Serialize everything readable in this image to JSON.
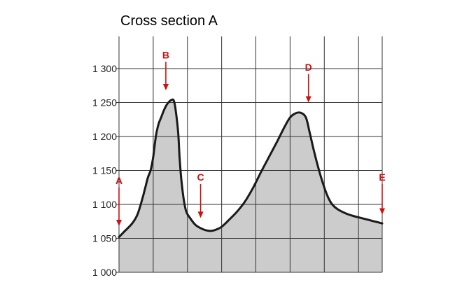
{
  "title": "Cross section A",
  "colors": {
    "profile_fill": "#cccccc",
    "profile_stroke": "#1a1a1a",
    "grid": "#333333",
    "marker": "#cc1111"
  },
  "chart_data": {
    "type": "area",
    "title": "Cross section A",
    "xlabel": "",
    "ylabel": "",
    "ylim": [
      1000,
      1350
    ],
    "xlim": [
      0,
      100
    ],
    "grid": true,
    "y_ticks": [
      1000,
      1050,
      1100,
      1150,
      1200,
      1250,
      1300
    ],
    "y_tick_labels": [
      "1 000",
      "1 050",
      "1 100",
      "1 150",
      "1 200",
      "1 250",
      "1 300"
    ],
    "x_gridlines": [
      0,
      13,
      26,
      39,
      52,
      65,
      78,
      91,
      100
    ],
    "profile": [
      [
        0,
        1052
      ],
      [
        2,
        1060
      ],
      [
        5,
        1072
      ],
      [
        7,
        1085
      ],
      [
        9,
        1110
      ],
      [
        10,
        1125
      ],
      [
        11,
        1140
      ],
      [
        12,
        1150
      ],
      [
        13,
        1170
      ],
      [
        14,
        1200
      ],
      [
        15,
        1218
      ],
      [
        16,
        1228
      ],
      [
        17,
        1238
      ],
      [
        18,
        1246
      ],
      [
        19,
        1251
      ],
      [
        20,
        1254
      ],
      [
        20.8,
        1253
      ],
      [
        21.5,
        1240
      ],
      [
        22.5,
        1205
      ],
      [
        23,
        1170
      ],
      [
        23.6,
        1140
      ],
      [
        24.5,
        1110
      ],
      [
        25.5,
        1090
      ],
      [
        27,
        1080
      ],
      [
        29,
        1070
      ],
      [
        31,
        1065
      ],
      [
        33,
        1062
      ],
      [
        35,
        1061
      ],
      [
        37,
        1063
      ],
      [
        39,
        1067
      ],
      [
        42,
        1078
      ],
      [
        45,
        1090
      ],
      [
        48,
        1105
      ],
      [
        51,
        1125
      ],
      [
        54,
        1148
      ],
      [
        57,
        1170
      ],
      [
        60,
        1192
      ],
      [
        63,
        1215
      ],
      [
        65,
        1228
      ],
      [
        67,
        1234
      ],
      [
        69,
        1235
      ],
      [
        71,
        1228
      ],
      [
        72.5,
        1205
      ],
      [
        74,
        1180
      ],
      [
        76,
        1150
      ],
      [
        78,
        1125
      ],
      [
        79.5,
        1110
      ],
      [
        81,
        1100
      ],
      [
        83,
        1093
      ],
      [
        86,
        1087
      ],
      [
        89,
        1083
      ],
      [
        92,
        1080
      ],
      [
        96,
        1076
      ],
      [
        100,
        1072
      ]
    ],
    "markers": [
      {
        "label": "A",
        "x": 0,
        "top": 1125,
        "tip": 1068
      },
      {
        "label": "B",
        "x": 17.8,
        "top": 1310,
        "tip": 1268
      },
      {
        "label": "C",
        "x": 31,
        "top": 1130,
        "tip": 1080
      },
      {
        "label": "D",
        "x": 72,
        "top": 1292,
        "tip": 1250
      },
      {
        "label": "E",
        "x": 100,
        "top": 1130,
        "tip": 1085
      }
    ]
  }
}
